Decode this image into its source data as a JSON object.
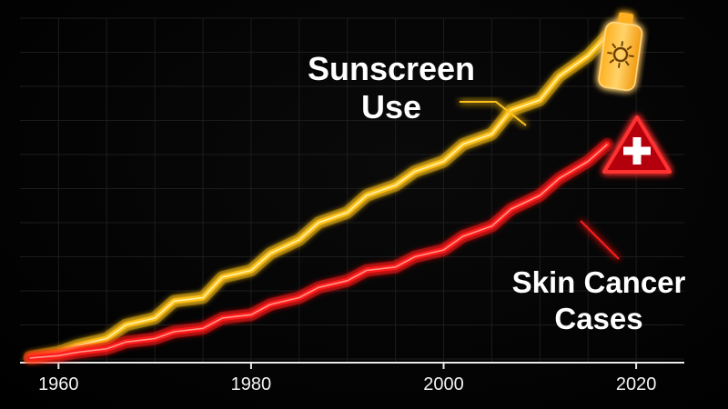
{
  "chart_data": {
    "type": "line",
    "title": "",
    "xlabel": "",
    "ylabel": "",
    "xlim": [
      1956,
      2025
    ],
    "ylim": [
      0,
      100
    ],
    "x_ticks": [
      "1960",
      "1980",
      "2000",
      "2020"
    ],
    "grid": true,
    "legend": "none",
    "x": [
      1957,
      1960,
      1962,
      1965,
      1967,
      1970,
      1972,
      1975,
      1977,
      1980,
      1982,
      1985,
      1987,
      1990,
      1992,
      1995,
      1997,
      2000,
      2002,
      2005,
      2007,
      2010,
      2012,
      2015,
      2017
    ],
    "series": [
      {
        "color": "#ffc21a",
        "values": [
          0.5,
          2,
          4,
          6,
          10,
          12,
          17,
          18,
          24,
          26,
          31,
          35,
          40,
          43,
          48,
          51,
          55,
          58,
          63,
          66,
          73,
          76,
          83,
          89,
          95
        ]
      },
      {
        "color": "#ff1e1e",
        "values": [
          0.3,
          1,
          2,
          3,
          5,
          6,
          8,
          9,
          12,
          13,
          16,
          18,
          21,
          23,
          26,
          27,
          30,
          32,
          36,
          39,
          44,
          48,
          53,
          58,
          63
        ]
      }
    ],
    "annotations": [
      {
        "line1": "Sunscreen",
        "line2": "Use",
        "color": "#ffffff",
        "pointer_color": "#ffc21a",
        "icon": "sunscreen-bottle-icon"
      },
      {
        "line1": "Skin Cancer",
        "line2": "Cases",
        "color": "#ffffff",
        "pointer_color": "#ff1e1e",
        "icon": "warning-cross-icon"
      }
    ]
  }
}
